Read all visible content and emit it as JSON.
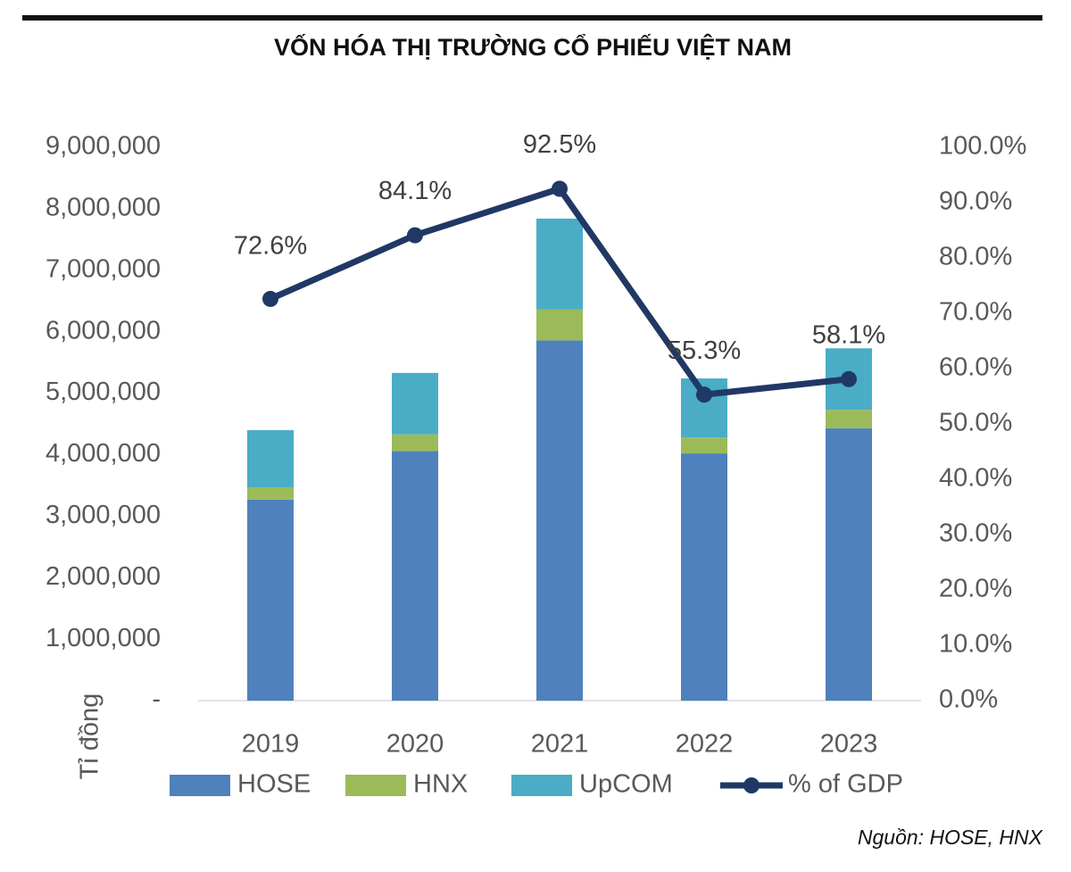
{
  "chart_data": {
    "type": "bar",
    "stacked": true,
    "title": "VỐN HÓA THỊ TRƯỜNG CỔ PHIẾU VIỆT NAM",
    "y_label": "Tỉ đồng",
    "source": "Nguồn: HOSE, HNX",
    "categories": [
      "2019",
      "2020",
      "2021",
      "2022",
      "2023"
    ],
    "series": [
      {
        "name": "HOSE",
        "color": "#4f81bd",
        "values": [
          3270000,
          4060000,
          5860000,
          4020000,
          4430000
        ]
      },
      {
        "name": "HNX",
        "color": "#9bbb59",
        "values": [
          200000,
          270000,
          500000,
          260000,
          300000
        ]
      },
      {
        "name": "UpCOM",
        "color": "#4bacc6",
        "values": [
          930000,
          1000000,
          1480000,
          960000,
          1000000
        ]
      },
      {
        "name": "% of GDP",
        "type": "line",
        "axis": "y2",
        "color": "#203864",
        "values": [
          72.6,
          84.1,
          92.5,
          55.3,
          58.1
        ],
        "value_labels": [
          "72.6%",
          "84.1%",
          "92.5%",
          "55.3%",
          "58.1%"
        ]
      }
    ],
    "ylim": [
      0,
      9000000
    ],
    "yticks": [
      {
        "value": 0,
        "label": "-"
      },
      {
        "value": 1000000,
        "label": "1,000,000"
      },
      {
        "value": 2000000,
        "label": "2,000,000"
      },
      {
        "value": 3000000,
        "label": "3,000,000"
      },
      {
        "value": 4000000,
        "label": "4,000,000"
      },
      {
        "value": 5000000,
        "label": "5,000,000"
      },
      {
        "value": 6000000,
        "label": "6,000,000"
      },
      {
        "value": 7000000,
        "label": "7,000,000"
      },
      {
        "value": 8000000,
        "label": "8,000,000"
      },
      {
        "value": 9000000,
        "label": "9,000,000"
      }
    ],
    "y2lim": [
      0,
      100
    ],
    "y2ticks": [
      {
        "value": 0,
        "label": "0.0%"
      },
      {
        "value": 10,
        "label": "10.0%"
      },
      {
        "value": 20,
        "label": "20.0%"
      },
      {
        "value": 30,
        "label": "30.0%"
      },
      {
        "value": 40,
        "label": "40.0%"
      },
      {
        "value": 50,
        "label": "50.0%"
      },
      {
        "value": 60,
        "label": "60.0%"
      },
      {
        "value": 70,
        "label": "70.0%"
      },
      {
        "value": 80,
        "label": "80.0%"
      },
      {
        "value": 90,
        "label": "90.0%"
      },
      {
        "value": 100,
        "label": "100.0%"
      }
    ],
    "legend": "bottom"
  }
}
